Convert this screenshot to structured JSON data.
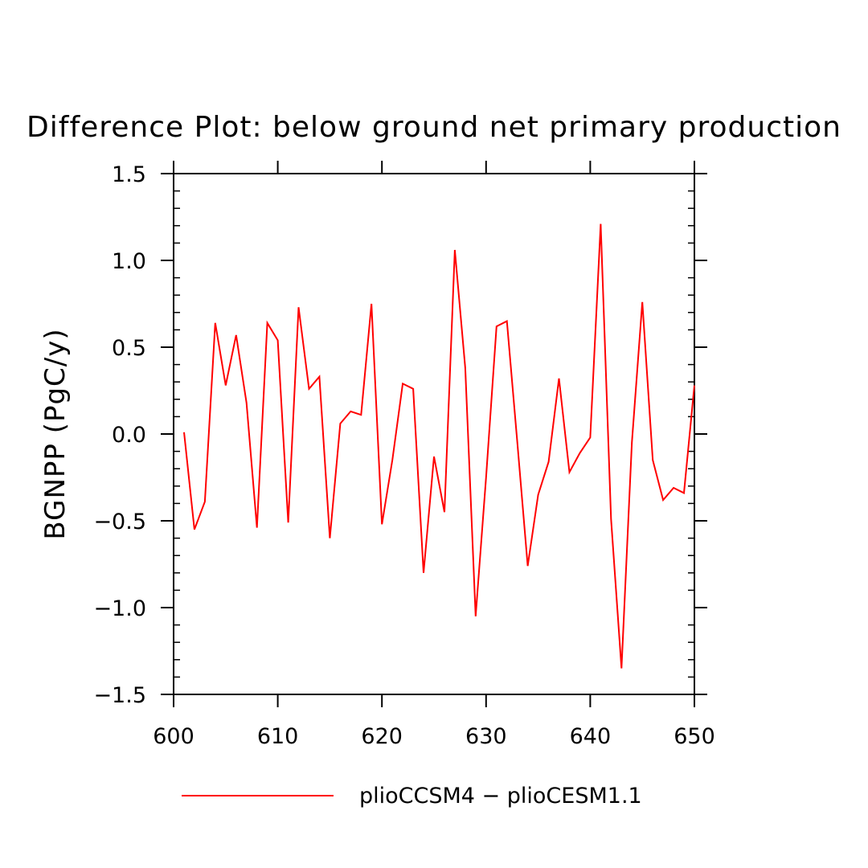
{
  "chart_data": {
    "type": "line",
    "title": "Difference Plot: below ground net primary production",
    "xlabel": "",
    "ylabel": "BGNPP  (PgC/y)",
    "xlim": [
      600,
      650
    ],
    "ylim": [
      -1.5,
      1.5
    ],
    "x_ticks": [
      "600",
      "610",
      "620",
      "630",
      "640",
      "650"
    ],
    "y_ticks": [
      "1.5",
      "1.0",
      "0.5",
      "0.0",
      "−0.5",
      "−1.0",
      "−1.5"
    ],
    "grid": false,
    "legend_position": "bottom-center",
    "line_color": "#ff0000",
    "series": [
      {
        "name": "plioCCSM4 − plioCESM1.1",
        "x": [
          601,
          602,
          603,
          604,
          605,
          606,
          607,
          608,
          609,
          610,
          611,
          612,
          613,
          614,
          615,
          616,
          617,
          618,
          619,
          620,
          621,
          622,
          623,
          624,
          625,
          626,
          627,
          628,
          629,
          630,
          631,
          632,
          633,
          634,
          635,
          636,
          637,
          638,
          639,
          640,
          641,
          642,
          643,
          644,
          645,
          646,
          647,
          648,
          649,
          650
        ],
        "y": [
          0.01,
          -0.55,
          -0.39,
          0.64,
          0.28,
          0.57,
          0.18,
          -0.54,
          0.64,
          0.54,
          -0.51,
          0.73,
          0.26,
          0.33,
          -0.6,
          0.06,
          0.13,
          0.11,
          0.75,
          -0.52,
          -0.15,
          0.29,
          0.26,
          -0.8,
          -0.13,
          -0.45,
          1.06,
          0.38,
          -1.05,
          -0.25,
          0.62,
          0.65,
          -0.05,
          -0.76,
          -0.35,
          -0.16,
          0.32,
          -0.22,
          -0.11,
          -0.02,
          1.21,
          -0.49,
          -1.35,
          -0.05,
          0.76,
          -0.15,
          -0.38,
          -0.31,
          -0.34,
          0.28
        ]
      }
    ]
  }
}
